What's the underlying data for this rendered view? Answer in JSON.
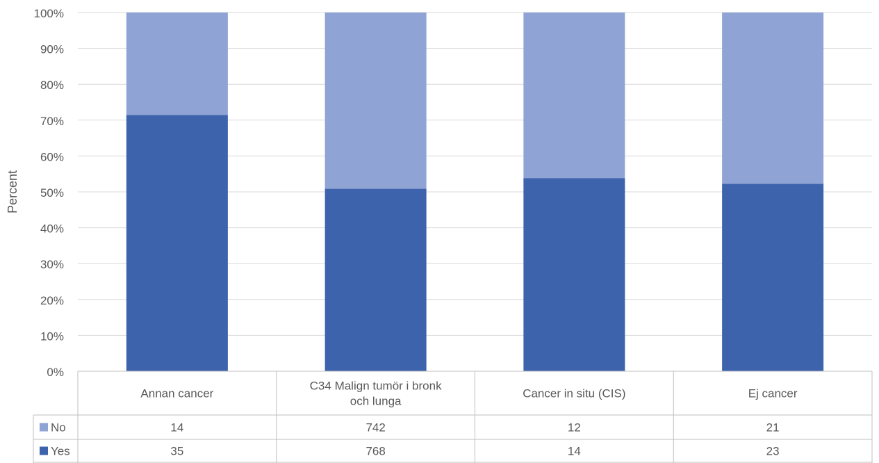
{
  "chart_data": {
    "type": "bar",
    "stacked": "percent",
    "ylabel": "Percent",
    "ylim": [
      0,
      100
    ],
    "yticks": [
      "0%",
      "10%",
      "20%",
      "30%",
      "40%",
      "50%",
      "60%",
      "70%",
      "80%",
      "90%",
      "100%"
    ],
    "grid": true,
    "categories": [
      [
        "Annan cancer"
      ],
      [
        "C34 Malign tumör i bronk",
        "och lunga"
      ],
      [
        "Cancer in situ (CIS)"
      ],
      [
        "Ej cancer"
      ]
    ],
    "series": [
      {
        "name": "Yes",
        "color": "#3C63AC",
        "values": [
          35,
          768,
          14,
          23
        ]
      },
      {
        "name": "No",
        "color": "#8FA3D5",
        "values": [
          14,
          742,
          12,
          21
        ]
      }
    ],
    "data_table": {
      "row_order": [
        "No",
        "Yes"
      ]
    }
  }
}
